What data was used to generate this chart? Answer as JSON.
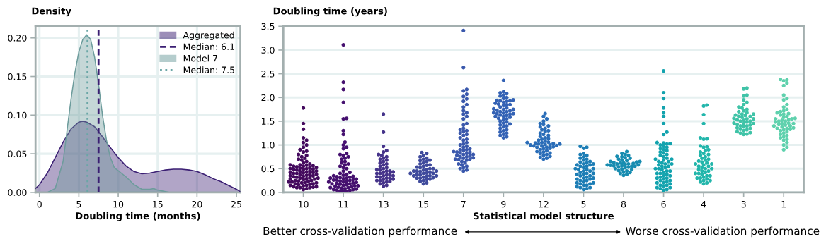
{
  "chart_data": [
    {
      "type": "area",
      "ylabel": "Density",
      "xlabel": "Doubling time (months)",
      "xlim": [
        -0.5,
        25.5
      ],
      "ylim": [
        0,
        0.215
      ],
      "xticks": [
        0,
        5,
        10,
        15,
        20,
        25
      ],
      "yticks": [
        {
          "value": 0,
          "label": "0.00"
        },
        {
          "value": 0.05,
          "label": "0.05"
        },
        {
          "value": 0.1,
          "label": "0.10"
        },
        {
          "value": 0.15,
          "label": "0.15"
        },
        {
          "value": 0.2,
          "label": "0.20"
        }
      ],
      "grid": true,
      "legend": "top right",
      "series": [
        {
          "name": "Aggregated",
          "color": "#3b1f73",
          "x": [
            -0.5,
            0,
            1,
            2,
            3,
            4,
            5,
            5.5,
            6,
            7,
            8,
            9,
            10,
            11,
            12,
            13,
            14,
            15,
            16,
            17,
            18,
            19,
            20,
            21,
            22,
            23,
            24,
            25,
            25.5
          ],
          "values": [
            0.005,
            0.01,
            0.025,
            0.045,
            0.065,
            0.082,
            0.091,
            0.092,
            0.091,
            0.085,
            0.072,
            0.058,
            0.045,
            0.034,
            0.027,
            0.024,
            0.025,
            0.027,
            0.029,
            0.03,
            0.03,
            0.029,
            0.027,
            0.023,
            0.018,
            0.014,
            0.009,
            0.004,
            0.001
          ]
        },
        {
          "name": "Model 7",
          "color": "#6d9c9c",
          "x": [
            1,
            2,
            3,
            3.5,
            4,
            4.5,
            5,
            5.5,
            6,
            6.5,
            7,
            7.5,
            8,
            8.5,
            9,
            9.5,
            10,
            11,
            12,
            13,
            14,
            14.5,
            15,
            16,
            16.5
          ],
          "values": [
            0,
            0.005,
            0.04,
            0.08,
            0.12,
            0.155,
            0.182,
            0.198,
            0.204,
            0.198,
            0.175,
            0.14,
            0.1,
            0.068,
            0.045,
            0.032,
            0.028,
            0.02,
            0.01,
            0.004,
            0.004,
            0.005,
            0.003,
            0.001,
            0
          ]
        }
      ],
      "annotations": [
        "Median: 6.1",
        "Median: 7.5"
      ],
      "ref_lines": [
        {
          "axis": "x",
          "value": 7.5,
          "color": "#3b1f73",
          "line_style": "dashed"
        },
        {
          "axis": "x",
          "value": 6.1,
          "color": "#6aa6a6",
          "line_style": "dotted"
        }
      ]
    },
    {
      "type": "scatter",
      "ylabel": "Doubling time (years)",
      "xlabel": "Statistical model structure",
      "categories": [
        "10",
        "11",
        "13",
        "15",
        "7",
        "9",
        "12",
        "5",
        "8",
        "6",
        "4",
        "3",
        "1"
      ],
      "ylim": [
        0,
        3.5
      ],
      "yticks": [
        {
          "value": 0,
          "label": "0.0"
        },
        {
          "value": 0.5,
          "label": "0.5"
        },
        {
          "value": 1,
          "label": "1.0"
        },
        {
          "value": 1.5,
          "label": "1.5"
        },
        {
          "value": 2,
          "label": "2.0"
        },
        {
          "value": 2.5,
          "label": "2.5"
        },
        {
          "value": 3,
          "label": "3.0"
        },
        {
          "value": 3.5,
          "label": "3.5"
        }
      ],
      "grid": "y",
      "marker": "circle",
      "annotations": [
        "Better cross-validation performance",
        "Worse cross-validation performance"
      ],
      "series": [
        {
          "color": "#440a5e",
          "x": [
            "10",
            "10",
            "10",
            "10",
            "10",
            "10",
            "10",
            "10",
            "10",
            "10",
            "10",
            "10",
            "10",
            "10",
            "10",
            "10",
            "10",
            "10",
            "10",
            "10",
            "10",
            "10",
            "10",
            "10",
            "10",
            "10",
            "10",
            "10",
            "10",
            "10",
            "10",
            "10",
            "10",
            "10",
            "10",
            "10",
            "10",
            "10",
            "10",
            "10",
            "10",
            "10",
            "10",
            "10",
            "10",
            "10",
            "10",
            "10",
            "10",
            "10",
            "10",
            "10",
            "10",
            "10",
            "10",
            "10",
            "10",
            "10",
            "10",
            "10",
            "10",
            "10",
            "10",
            "10",
            "10",
            "10",
            "10",
            "10",
            "10",
            "10",
            "10",
            "10",
            "10",
            "10",
            "10",
            "10",
            "10",
            "10",
            "10",
            "10",
            "10",
            "10",
            "10",
            "10",
            "10"
          ],
          "values": [
            1.78,
            1.45,
            1.33,
            1.15,
            1.1,
            1.05,
            1.0,
            0.95,
            0.9,
            0.87,
            0.85,
            0.8,
            0.78,
            0.75,
            0.72,
            0.7,
            0.68,
            0.65,
            0.62,
            0.6,
            0.58,
            0.55,
            0.52,
            0.5,
            0.48,
            0.45,
            0.42,
            0.4,
            0.38,
            0.35,
            0.33,
            0.3,
            0.28,
            0.25,
            0.22,
            0.2,
            0.18,
            0.15,
            0.12,
            0.1,
            0.08,
            0.06,
            0.1,
            0.12,
            0.15,
            0.18,
            0.2,
            0.22,
            0.25,
            0.28,
            0.3,
            0.32,
            0.35,
            0.38,
            0.4,
            0.42,
            0.45,
            0.48,
            0.5,
            0.52,
            0.55,
            0.58,
            0.1,
            0.14,
            0.17,
            0.21,
            0.24,
            0.27,
            0.31,
            0.34,
            0.37,
            0.41,
            0.44,
            0.47,
            0.51,
            0.54,
            0.57,
            0.11,
            0.16,
            0.23,
            0.29,
            0.36,
            0.43,
            0.49,
            0.56
          ]
        },
        {
          "color": "#45106f",
          "x": [
            "11",
            "11",
            "11",
            "11",
            "11",
            "11",
            "11",
            "11",
            "11",
            "11",
            "11",
            "11",
            "11",
            "11",
            "11",
            "11",
            "11",
            "11",
            "11",
            "11",
            "11",
            "11",
            "11",
            "11",
            "11",
            "11",
            "11",
            "11",
            "11",
            "11",
            "11",
            "11",
            "11",
            "11",
            "11",
            "11",
            "11",
            "11",
            "11",
            "11",
            "11",
            "11",
            "11",
            "11",
            "11",
            "11",
            "11",
            "11",
            "11",
            "11",
            "11",
            "11",
            "11",
            "11",
            "11",
            "11",
            "11",
            "11",
            "11",
            "11",
            "11",
            "11",
            "11",
            "11",
            "11",
            "11",
            "11",
            "11",
            "11",
            "11",
            "11",
            "11"
          ],
          "values": [
            3.11,
            2.32,
            2.17,
            1.9,
            1.56,
            1.55,
            1.3,
            1.22,
            1.06,
            1.0,
            0.95,
            0.92,
            0.82,
            0.8,
            0.78,
            0.75,
            0.72,
            0.7,
            0.65,
            0.62,
            0.6,
            0.58,
            0.55,
            0.52,
            0.5,
            0.45,
            0.42,
            0.4,
            0.38,
            0.02,
            0.04,
            0.06,
            0.08,
            0.1,
            0.12,
            0.14,
            0.16,
            0.18,
            0.2,
            0.22,
            0.24,
            0.26,
            0.28,
            0.3,
            0.32,
            0.34,
            0.36,
            0.03,
            0.05,
            0.07,
            0.09,
            0.11,
            0.13,
            0.15,
            0.17,
            0.19,
            0.21,
            0.23,
            0.25,
            0.27,
            0.29,
            0.31,
            0.33,
            0.35,
            0.02,
            0.06,
            0.1,
            0.14,
            0.18,
            0.22,
            0.26,
            0.3
          ]
        },
        {
          "color": "#45338a",
          "x": [
            "13",
            "13",
            "13",
            "13",
            "13",
            "13",
            "13",
            "13",
            "13",
            "13",
            "13",
            "13",
            "13",
            "13",
            "13",
            "13",
            "13",
            "13",
            "13",
            "13",
            "13",
            "13",
            "13",
            "13",
            "13",
            "13",
            "13",
            "13",
            "13",
            "13",
            "13",
            "13",
            "13",
            "13",
            "13",
            "13",
            "13",
            "13",
            "13",
            "13",
            "13",
            "13",
            "13",
            "13"
          ],
          "values": [
            1.65,
            1.27,
            0.97,
            0.88,
            0.85,
            0.8,
            0.78,
            0.75,
            0.72,
            0.7,
            0.68,
            0.65,
            0.62,
            0.6,
            0.58,
            0.55,
            0.52,
            0.5,
            0.48,
            0.47,
            0.45,
            0.43,
            0.42,
            0.4,
            0.38,
            0.37,
            0.35,
            0.33,
            0.32,
            0.3,
            0.28,
            0.27,
            0.25,
            0.23,
            0.22,
            0.2,
            0.18,
            0.15,
            0.13,
            0.45,
            0.4,
            0.35,
            0.3,
            0.25
          ]
        },
        {
          "color": "#3f4a9c",
          "x": [
            "15",
            "15",
            "15",
            "15",
            "15",
            "15",
            "15",
            "15",
            "15",
            "15",
            "15",
            "15",
            "15",
            "15",
            "15",
            "15",
            "15",
            "15",
            "15",
            "15",
            "15",
            "15",
            "15",
            "15",
            "15",
            "15",
            "15",
            "15",
            "15",
            "15",
            "15",
            "15",
            "15",
            "15",
            "15",
            "15",
            "15",
            "15",
            "15",
            "15",
            "15",
            "15",
            "15",
            "15",
            "15"
          ],
          "values": [
            0.84,
            0.82,
            0.78,
            0.75,
            0.72,
            0.7,
            0.68,
            0.67,
            0.65,
            0.62,
            0.6,
            0.58,
            0.57,
            0.55,
            0.53,
            0.52,
            0.5,
            0.48,
            0.47,
            0.45,
            0.44,
            0.42,
            0.41,
            0.4,
            0.38,
            0.37,
            0.35,
            0.34,
            0.32,
            0.31,
            0.3,
            0.28,
            0.27,
            0.25,
            0.23,
            0.2,
            0.18,
            0.5,
            0.45,
            0.4,
            0.35,
            0.3,
            0.45,
            0.4,
            0.35
          ]
        },
        {
          "color": "#3a58ac",
          "x": [
            "7",
            "7",
            "7",
            "7",
            "7",
            "7",
            "7",
            "7",
            "7",
            "7",
            "7",
            "7",
            "7",
            "7",
            "7",
            "7",
            "7",
            "7",
            "7",
            "7",
            "7",
            "7",
            "7",
            "7",
            "7",
            "7",
            "7",
            "7",
            "7",
            "7",
            "7",
            "7",
            "7",
            "7",
            "7",
            "7",
            "7",
            "7",
            "7",
            "7",
            "7",
            "7",
            "7",
            "7",
            "7",
            "7",
            "7",
            "7",
            "7",
            "7",
            "7",
            "7",
            "7",
            "7",
            "7",
            "7",
            "7",
            "7",
            "7",
            "7",
            "7",
            "7"
          ],
          "values": [
            3.41,
            2.63,
            2.17,
            2.14,
            2.07,
            2.02,
            1.97,
            1.92,
            1.85,
            1.8,
            1.72,
            1.68,
            1.65,
            1.6,
            1.55,
            1.45,
            1.42,
            1.35,
            1.32,
            1.3,
            1.28,
            1.25,
            1.22,
            1.2,
            1.15,
            1.12,
            1.1,
            1.05,
            1.02,
            1.0,
            0.97,
            0.95,
            0.92,
            0.9,
            0.88,
            0.86,
            0.85,
            0.83,
            0.82,
            0.8,
            0.78,
            0.77,
            0.75,
            0.73,
            0.72,
            0.7,
            0.69,
            0.68,
            0.65,
            0.62,
            0.6,
            0.58,
            0.55,
            0.52,
            0.5,
            0.47,
            0.45,
            0.85,
            0.8,
            0.75,
            0.7,
            0.9
          ]
        },
        {
          "color": "#3462b5",
          "x": [
            "9",
            "9",
            "9",
            "9",
            "9",
            "9",
            "9",
            "9",
            "9",
            "9",
            "9",
            "9",
            "9",
            "9",
            "9",
            "9",
            "9",
            "9",
            "9",
            "9",
            "9",
            "9",
            "9",
            "9",
            "9",
            "9",
            "9",
            "9",
            "9",
            "9",
            "9",
            "9",
            "9",
            "9",
            "9",
            "9",
            "9",
            "9",
            "9",
            "9",
            "9",
            "9",
            "9",
            "9",
            "9",
            "9",
            "9",
            "9",
            "9",
            "9",
            "9",
            "9",
            "9",
            "9",
            "9",
            "9",
            "9"
          ],
          "values": [
            2.36,
            2.12,
            2.1,
            2.08,
            2.05,
            2.03,
            2.0,
            1.98,
            1.95,
            1.94,
            1.93,
            1.92,
            1.9,
            1.88,
            1.86,
            1.85,
            1.83,
            1.8,
            1.78,
            1.76,
            1.75,
            1.73,
            1.72,
            1.7,
            1.68,
            1.67,
            1.66,
            1.65,
            1.63,
            1.62,
            1.6,
            1.58,
            1.56,
            1.55,
            1.53,
            1.5,
            1.48,
            1.46,
            1.44,
            1.42,
            1.4,
            1.38,
            1.35,
            1.32,
            1.3,
            1.27,
            1.25,
            1.22,
            1.2,
            1.17,
            1.15,
            1.93,
            1.66,
            1.75,
            1.85,
            1.6,
            1.7
          ]
        },
        {
          "color": "#2a6db8",
          "x": [
            "12",
            "12",
            "12",
            "12",
            "12",
            "12",
            "12",
            "12",
            "12",
            "12",
            "12",
            "12",
            "12",
            "12",
            "12",
            "12",
            "12",
            "12",
            "12",
            "12",
            "12",
            "12",
            "12",
            "12",
            "12",
            "12",
            "12",
            "12",
            "12",
            "12",
            "12",
            "12",
            "12",
            "12",
            "12",
            "12",
            "12",
            "12",
            "12",
            "12",
            "12",
            "12",
            "12",
            "12",
            "12",
            "12",
            "12",
            "12",
            "12",
            "12",
            "12"
          ],
          "values": [
            1.66,
            1.6,
            1.55,
            1.5,
            1.45,
            1.43,
            1.4,
            1.38,
            1.35,
            1.32,
            1.3,
            1.28,
            1.25,
            1.22,
            1.2,
            1.18,
            1.15,
            1.13,
            1.12,
            1.1,
            1.08,
            1.06,
            1.05,
            1.04,
            1.03,
            1.02,
            1.01,
            1.0,
            0.99,
            0.98,
            0.96,
            0.95,
            0.93,
            0.92,
            0.9,
            0.88,
            0.86,
            0.85,
            0.83,
            0.82,
            0.8,
            0.78,
            0.76,
            0.74,
            0.72,
            0.7,
            1.02,
            1.0,
            0.98,
            1.05,
            0.95
          ]
        },
        {
          "color": "#1c7db5",
          "x": [
            "5",
            "5",
            "5",
            "5",
            "5",
            "5",
            "5",
            "5",
            "5",
            "5",
            "5",
            "5",
            "5",
            "5",
            "5",
            "5",
            "5",
            "5",
            "5",
            "5",
            "5",
            "5",
            "5",
            "5",
            "5",
            "5",
            "5",
            "5",
            "5",
            "5",
            "5",
            "5",
            "5",
            "5",
            "5",
            "5",
            "5",
            "5",
            "5",
            "5",
            "5",
            "5",
            "5",
            "5",
            "5",
            "5",
            "5",
            "5",
            "5",
            "5",
            "5",
            "5"
          ],
          "values": [
            0.97,
            0.95,
            0.93,
            0.82,
            0.8,
            0.78,
            0.75,
            0.72,
            0.7,
            0.68,
            0.65,
            0.64,
            0.62,
            0.6,
            0.58,
            0.55,
            0.52,
            0.5,
            0.48,
            0.45,
            0.42,
            0.4,
            0.38,
            0.35,
            0.32,
            0.3,
            0.28,
            0.25,
            0.22,
            0.2,
            0.18,
            0.15,
            0.12,
            0.1,
            0.08,
            0.06,
            0.6,
            0.55,
            0.5,
            0.45,
            0.4,
            0.35,
            0.3,
            0.25,
            0.2,
            0.15,
            0.1,
            0.58,
            0.48,
            0.38,
            0.28,
            0.18
          ]
        },
        {
          "color": "#178cb0",
          "x": [
            "8",
            "8",
            "8",
            "8",
            "8",
            "8",
            "8",
            "8",
            "8",
            "8",
            "8",
            "8",
            "8",
            "8",
            "8",
            "8",
            "8",
            "8",
            "8",
            "8",
            "8",
            "8",
            "8",
            "8",
            "8",
            "8",
            "8",
            "8",
            "8",
            "8",
            "8",
            "8",
            "8",
            "8",
            "8",
            "8",
            "8",
            "8",
            "8",
            "8",
            "8"
          ],
          "values": [
            0.86,
            0.82,
            0.8,
            0.78,
            0.76,
            0.75,
            0.73,
            0.72,
            0.7,
            0.68,
            0.67,
            0.65,
            0.64,
            0.63,
            0.62,
            0.61,
            0.6,
            0.59,
            0.58,
            0.57,
            0.56,
            0.55,
            0.54,
            0.53,
            0.52,
            0.5,
            0.49,
            0.48,
            0.46,
            0.45,
            0.43,
            0.42,
            0.4,
            0.38,
            0.36,
            0.62,
            0.6,
            0.58,
            0.56,
            0.55,
            0.65
          ]
        },
        {
          "color": "#13a3ae",
          "x": [
            "6",
            "6",
            "6",
            "6",
            "6",
            "6",
            "6",
            "6",
            "6",
            "6",
            "6",
            "6",
            "6",
            "6",
            "6",
            "6",
            "6",
            "6",
            "6",
            "6",
            "6",
            "6",
            "6",
            "6",
            "6",
            "6",
            "6",
            "6",
            "6",
            "6",
            "6",
            "6",
            "6",
            "6",
            "6",
            "6",
            "6",
            "6",
            "6",
            "6",
            "6",
            "6",
            "6",
            "6",
            "6",
            "6",
            "6",
            "6",
            "6",
            "6",
            "6",
            "6",
            "6",
            "6",
            "6",
            "6",
            "6",
            "6",
            "6",
            "6",
            "6",
            "6",
            "6",
            "6",
            "6",
            "6"
          ],
          "values": [
            2.56,
            2.1,
            1.98,
            1.78,
            1.68,
            1.6,
            1.45,
            1.27,
            1.22,
            1.05,
            1.04,
            1.03,
            1.02,
            1.0,
            0.97,
            0.95,
            0.92,
            0.9,
            0.88,
            0.85,
            0.83,
            0.8,
            0.78,
            0.75,
            0.72,
            0.7,
            0.68,
            0.65,
            0.62,
            0.6,
            0.58,
            0.55,
            0.52,
            0.5,
            0.48,
            0.45,
            0.42,
            0.4,
            0.38,
            0.35,
            0.32,
            0.3,
            0.28,
            0.25,
            0.22,
            0.2,
            0.18,
            0.15,
            0.12,
            0.1,
            0.08,
            0.06,
            0.04,
            0.6,
            0.5,
            0.4,
            0.3,
            0.2,
            0.1,
            0.55,
            0.45,
            0.35,
            0.25,
            0.15,
            0.65,
            0.7
          ]
        },
        {
          "color": "#22b6ab",
          "x": [
            "4",
            "4",
            "4",
            "4",
            "4",
            "4",
            "4",
            "4",
            "4",
            "4",
            "4",
            "4",
            "4",
            "4",
            "4",
            "4",
            "4",
            "4",
            "4",
            "4",
            "4",
            "4",
            "4",
            "4",
            "4",
            "4",
            "4",
            "4",
            "4",
            "4",
            "4",
            "4",
            "4",
            "4",
            "4",
            "4",
            "4",
            "4",
            "4",
            "4",
            "4",
            "4",
            "4",
            "4",
            "4",
            "4",
            "4",
            "4",
            "4"
          ],
          "values": [
            1.84,
            1.82,
            1.64,
            1.45,
            1.15,
            1.13,
            1.12,
            0.98,
            0.96,
            0.95,
            0.9,
            0.88,
            0.85,
            0.82,
            0.8,
            0.78,
            0.75,
            0.72,
            0.7,
            0.68,
            0.66,
            0.64,
            0.62,
            0.6,
            0.58,
            0.55,
            0.52,
            0.5,
            0.48,
            0.45,
            0.42,
            0.4,
            0.38,
            0.35,
            0.32,
            0.3,
            0.28,
            0.25,
            0.22,
            0.2,
            0.18,
            0.6,
            0.5,
            0.4,
            0.3,
            0.55,
            0.45,
            0.35,
            0.25
          ]
        },
        {
          "color": "#3fc3a7",
          "x": [
            "3",
            "3",
            "3",
            "3",
            "3",
            "3",
            "3",
            "3",
            "3",
            "3",
            "3",
            "3",
            "3",
            "3",
            "3",
            "3",
            "3",
            "3",
            "3",
            "3",
            "3",
            "3",
            "3",
            "3",
            "3",
            "3",
            "3",
            "3",
            "3",
            "3",
            "3",
            "3",
            "3",
            "3",
            "3",
            "3",
            "3",
            "3",
            "3",
            "3",
            "3",
            "3",
            "3",
            "3",
            "3",
            "3"
          ],
          "values": [
            2.2,
            2.18,
            2.05,
            2.03,
            1.95,
            1.9,
            1.85,
            1.8,
            1.78,
            1.75,
            1.72,
            1.7,
            1.68,
            1.65,
            1.63,
            1.62,
            1.6,
            1.58,
            1.56,
            1.55,
            1.53,
            1.52,
            1.5,
            1.48,
            1.46,
            1.45,
            1.43,
            1.42,
            1.4,
            1.38,
            1.36,
            1.35,
            1.33,
            1.32,
            1.3,
            1.28,
            1.26,
            1.25,
            1.23,
            1.22,
            1.5,
            1.55,
            1.6,
            1.45,
            1.4,
            1.65
          ]
        },
        {
          "color": "#5fd1ad",
          "x": [
            "1",
            "1",
            "1",
            "1",
            "1",
            "1",
            "1",
            "1",
            "1",
            "1",
            "1",
            "1",
            "1",
            "1",
            "1",
            "1",
            "1",
            "1",
            "1",
            "1",
            "1",
            "1",
            "1",
            "1",
            "1",
            "1",
            "1",
            "1",
            "1",
            "1",
            "1",
            "1",
            "1",
            "1",
            "1",
            "1",
            "1",
            "1",
            "1",
            "1",
            "1",
            "1",
            "1",
            "1",
            "1",
            "1",
            "1",
            "1",
            "1",
            "1",
            "1",
            "1",
            "1"
          ],
          "values": [
            2.38,
            2.37,
            2.35,
            2.3,
            2.25,
            2.05,
            1.98,
            1.95,
            1.85,
            1.8,
            1.75,
            1.72,
            1.7,
            1.68,
            1.66,
            1.65,
            1.63,
            1.6,
            1.58,
            1.56,
            1.55,
            1.53,
            1.52,
            1.5,
            1.48,
            1.46,
            1.45,
            1.43,
            1.42,
            1.4,
            1.38,
            1.36,
            1.35,
            1.33,
            1.32,
            1.3,
            1.28,
            1.25,
            1.22,
            1.2,
            1.17,
            1.15,
            1.12,
            1.1,
            1.05,
            1.0,
            0.95,
            0.9,
            1.5,
            1.45,
            1.55,
            1.4,
            1.35
          ]
        }
      ]
    }
  ]
}
